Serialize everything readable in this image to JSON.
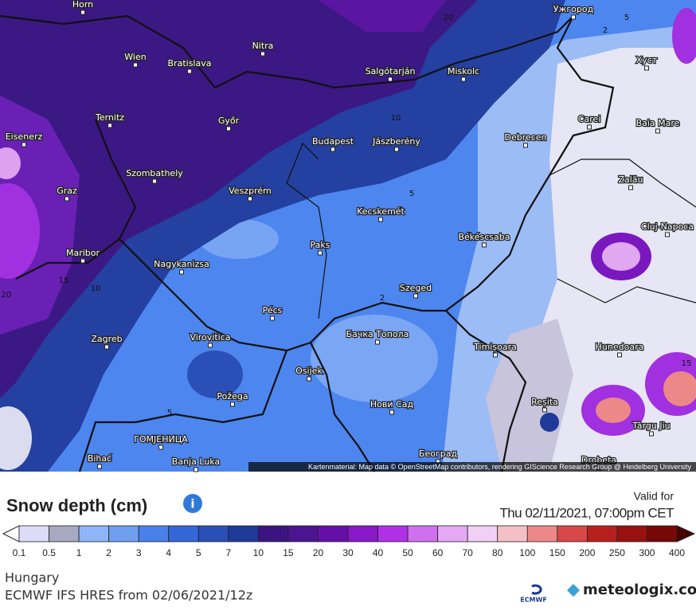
{
  "map": {
    "cities": [
      "Horn",
      "Wien",
      "Bratislava",
      "Nitra",
      "Salgótarján",
      "Miskolc",
      "Ужгород",
      "Хуст",
      "Ternitz",
      "Eisenerz",
      "Győr",
      "Budapest",
      "Jászberény",
      "Debrecen",
      "Carei",
      "Baia Mare",
      "Szombathely",
      "Graz",
      "Veszprém",
      "Zalău",
      "Kecskemét",
      "Cluj-Napoca",
      "Paks",
      "Békéscsaba",
      "Maribor",
      "Nagykanizsa",
      "Szeged",
      "Pécs",
      "Zagreb",
      "Virovitica",
      "Бачка Топола",
      "Timișoara",
      "Hunedoara",
      "Osijek",
      "Požega",
      "Нови Сад",
      "Reșita",
      "Târgu Jiu",
      "ГОМЈЕНИЦА",
      "Bihać",
      "Banja Luka",
      "Београд",
      "Drobeta"
    ],
    "contour_labels": [
      "20",
      "5",
      "2",
      "10",
      "5",
      "15",
      "10",
      "20",
      "2",
      "5",
      "15"
    ],
    "attribution": "Kartenmaterial: Map data © OpenStreetMap contributors, rendering GIScience Research Group @ Heidelberg University"
  },
  "legend": {
    "title": "Snow depth (cm)",
    "valid_label": "Valid for",
    "valid_time": "Thu 02/11/2021, 07:00pm CET",
    "levels": [
      0.1,
      0.5,
      1,
      2,
      3,
      4,
      5,
      7,
      10,
      15,
      20,
      30,
      40,
      50,
      60,
      70,
      80,
      100,
      150,
      200,
      250,
      300,
      400
    ],
    "colors": [
      "#dcdcf8",
      "#a8a8c0",
      "#8fb4f8",
      "#6f9ef0",
      "#4a80ec",
      "#3466d8",
      "#2a50b8",
      "#1f3a98",
      "#3a1480",
      "#4c1490",
      "#6410a8",
      "#8818c8",
      "#b030e8",
      "#d070f0",
      "#e4a8f4",
      "#f0d0f4",
      "#f4c0c8",
      "#ec8888",
      "#d84848",
      "#b82020",
      "#981010",
      "#780808"
    ]
  },
  "footer": {
    "region": "Hungary",
    "model": "ECMWF IFS HRES from 02/06/2021/12z",
    "ecmwf": "ECMWF",
    "brand": "meteologix.com"
  }
}
